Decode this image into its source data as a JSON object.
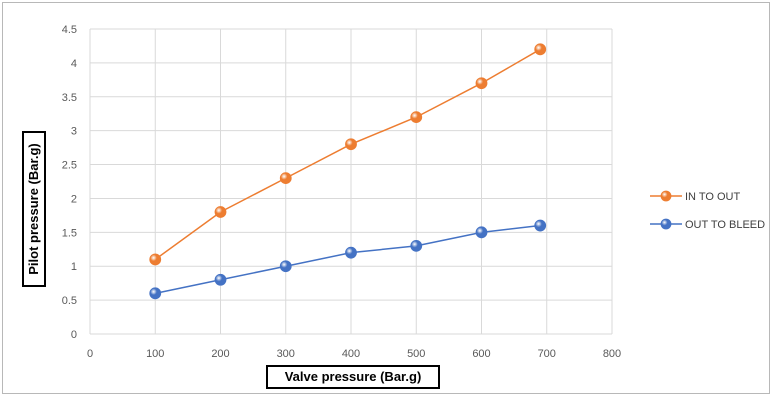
{
  "chart_data": {
    "type": "line",
    "xlabel": "Valve pressure (Bar.g)",
    "ylabel": "Pilot pressure (Bar.g)",
    "xlim": [
      0,
      800
    ],
    "ylim": [
      0,
      4.5
    ],
    "x_ticks": [
      "0",
      "100",
      "200",
      "300",
      "400",
      "500",
      "600",
      "700",
      "800"
    ],
    "y_ticks": [
      "0",
      "0.5",
      "1",
      "1.5",
      "2",
      "2.5",
      "3",
      "3.5",
      "4",
      "4.5"
    ],
    "grid": true,
    "legend_position": "right",
    "series": [
      {
        "name": "IN TO OUT",
        "color": "#ed7d31",
        "x": [
          100,
          200,
          300,
          400,
          500,
          600,
          690
        ],
        "y": [
          1.1,
          1.8,
          2.3,
          2.8,
          3.2,
          3.7,
          4.2
        ]
      },
      {
        "name": "OUT TO BLEED",
        "color": "#4472c4",
        "x": [
          100,
          200,
          300,
          400,
          500,
          600,
          690
        ],
        "y": [
          0.6,
          0.8,
          1.0,
          1.2,
          1.3,
          1.5,
          1.6
        ]
      }
    ]
  }
}
